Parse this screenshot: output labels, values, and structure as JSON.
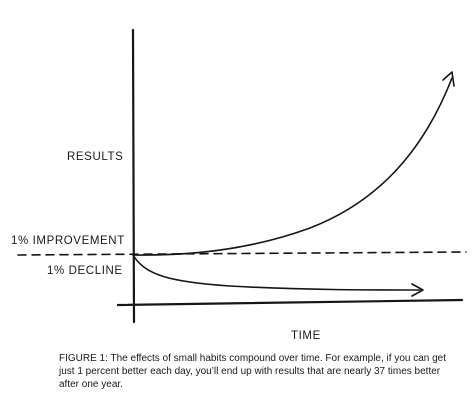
{
  "labels": {
    "results": "RESULTS",
    "improvement": "1% IMPROVEMENT",
    "decline": "1% DECLINE",
    "time": "TIME"
  },
  "caption": "FIGURE 1: The effects of small habits compound over time. For example, if you can get just 1 percent better each day, you’ll end up with results that are nearly 37 times better after one year.",
  "colors": {
    "ink": "#161616",
    "background": "#ffffff"
  }
}
